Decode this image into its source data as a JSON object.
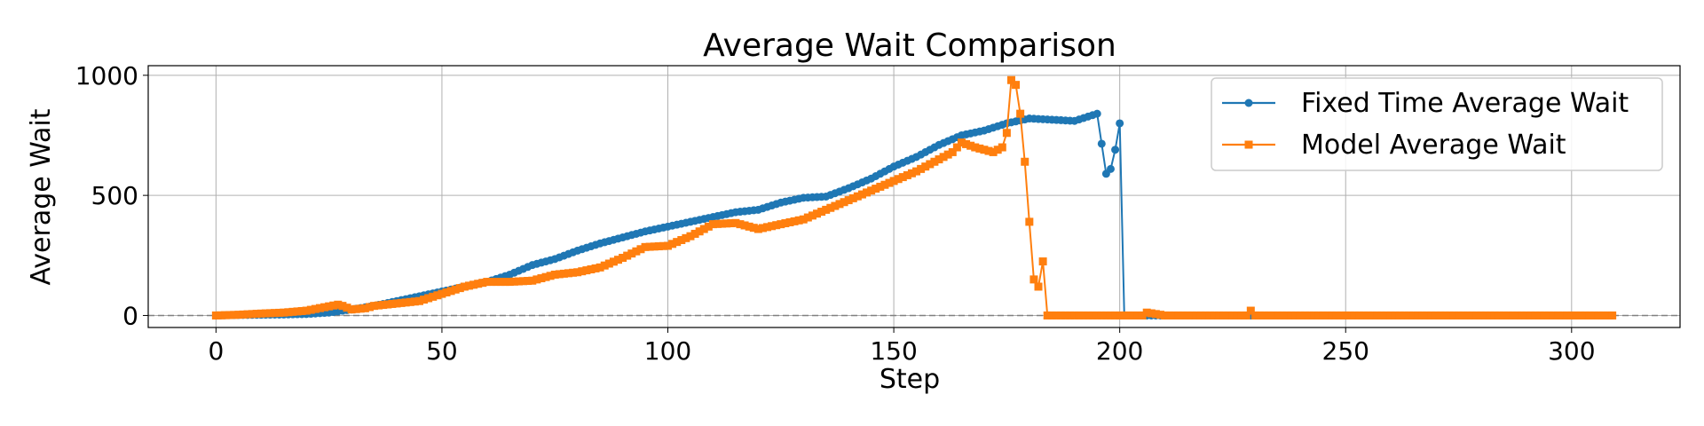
{
  "chart_data": {
    "type": "line",
    "title": "Average Wait Comparison",
    "xlabel": "Step",
    "ylabel": "Average Wait",
    "xlim": [
      -15,
      324
    ],
    "ylim": [
      -50,
      1040
    ],
    "xticks": [
      0,
      50,
      100,
      150,
      200,
      250,
      300
    ],
    "yticks": [
      0,
      500,
      1000
    ],
    "grid": true,
    "reference_line": {
      "y": 0,
      "style": "dashed",
      "color": "#808080"
    },
    "legend_position": "top-right",
    "series": [
      {
        "name": "Fixed Time Average Wait",
        "color": "#1f77b4",
        "marker": "circle",
        "x": [
          0,
          5,
          10,
          15,
          20,
          25,
          30,
          35,
          40,
          45,
          50,
          55,
          60,
          65,
          70,
          75,
          80,
          85,
          90,
          95,
          100,
          105,
          110,
          115,
          120,
          125,
          130,
          135,
          140,
          145,
          150,
          155,
          160,
          165,
          170,
          175,
          180,
          185,
          190,
          195,
          197,
          198,
          199,
          200,
          201,
          202,
          205,
          210,
          250,
          309
        ],
        "y": [
          0,
          2,
          3,
          4,
          6,
          12,
          25,
          40,
          60,
          80,
          100,
          120,
          140,
          170,
          210,
          235,
          270,
          300,
          325,
          350,
          370,
          390,
          410,
          430,
          440,
          470,
          490,
          495,
          530,
          570,
          620,
          660,
          710,
          750,
          770,
          800,
          820,
          815,
          810,
          840,
          590,
          610,
          690,
          800,
          0,
          0,
          0,
          0,
          0,
          0
        ]
      },
      {
        "name": "Model Average Wait",
        "color": "#ff7f0e",
        "marker": "square",
        "x": [
          0,
          5,
          10,
          15,
          20,
          25,
          27,
          28,
          30,
          33,
          35,
          40,
          45,
          50,
          55,
          60,
          65,
          70,
          75,
          80,
          85,
          90,
          95,
          100,
          105,
          110,
          115,
          120,
          125,
          130,
          135,
          140,
          145,
          150,
          155,
          160,
          163,
          165,
          168,
          170,
          172,
          174,
          175,
          176,
          177,
          178,
          179,
          180,
          181,
          182,
          183,
          184,
          186,
          190,
          195,
          200,
          205,
          206,
          210,
          228,
          229,
          230,
          250,
          309
        ],
        "y": [
          0,
          3,
          8,
          12,
          20,
          38,
          45,
          40,
          25,
          30,
          40,
          50,
          60,
          90,
          120,
          140,
          140,
          145,
          170,
          180,
          200,
          240,
          285,
          290,
          330,
          380,
          385,
          360,
          380,
          400,
          440,
          480,
          520,
          560,
          600,
          650,
          680,
          720,
          700,
          690,
          680,
          700,
          760,
          980,
          960,
          840,
          640,
          390,
          150,
          120,
          225,
          0,
          0,
          0,
          0,
          0,
          0,
          12,
          0,
          0,
          20,
          0,
          0,
          0
        ]
      }
    ]
  }
}
